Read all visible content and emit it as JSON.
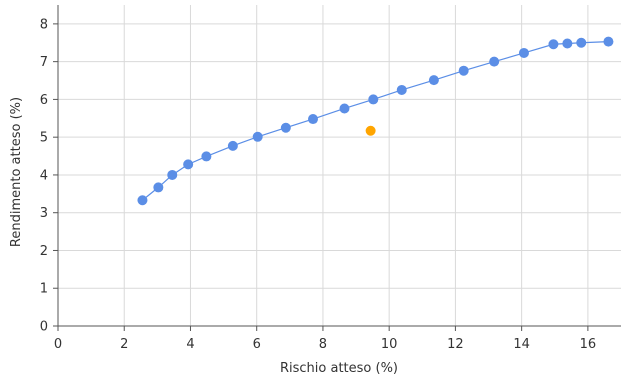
{
  "chart_data": {
    "type": "scatter",
    "title": "",
    "xlabel": "Rischio atteso (%)",
    "ylabel": "Rendimento atteso (%)",
    "xlim": [
      0,
      17
    ],
    "ylim": [
      0,
      8.5
    ],
    "x_ticks": [
      0,
      2,
      4,
      6,
      8,
      10,
      12,
      14,
      16
    ],
    "y_ticks": [
      0,
      1,
      2,
      3,
      4,
      5,
      6,
      7,
      8
    ],
    "grid": true,
    "legend": "none",
    "series": [
      {
        "color": "#5b8ee6",
        "style": "line-with-markers",
        "points": [
          {
            "x": 2.55,
            "y": 3.33
          },
          {
            "x": 3.03,
            "y": 3.67
          },
          {
            "x": 3.45,
            "y": 4.0
          },
          {
            "x": 3.93,
            "y": 4.28
          },
          {
            "x": 4.48,
            "y": 4.49
          },
          {
            "x": 5.28,
            "y": 4.77
          },
          {
            "x": 6.03,
            "y": 5.01
          },
          {
            "x": 6.88,
            "y": 5.25
          },
          {
            "x": 7.7,
            "y": 5.48
          },
          {
            "x": 8.65,
            "y": 5.76
          },
          {
            "x": 9.52,
            "y": 6.0
          },
          {
            "x": 10.38,
            "y": 6.25
          },
          {
            "x": 11.35,
            "y": 6.51
          },
          {
            "x": 12.25,
            "y": 6.76
          },
          {
            "x": 13.17,
            "y": 7.0
          },
          {
            "x": 14.07,
            "y": 7.23
          },
          {
            "x": 14.96,
            "y": 7.46
          },
          {
            "x": 15.38,
            "y": 7.48
          },
          {
            "x": 15.8,
            "y": 7.5
          },
          {
            "x": 16.62,
            "y": 7.53
          }
        ]
      },
      {
        "color": "#ffa500",
        "style": "markers",
        "points": [
          {
            "x": 9.44,
            "y": 5.17
          }
        ]
      }
    ]
  },
  "colors": {
    "grid": "#d9d9d9",
    "axis": "#555555",
    "text": "#333333"
  }
}
